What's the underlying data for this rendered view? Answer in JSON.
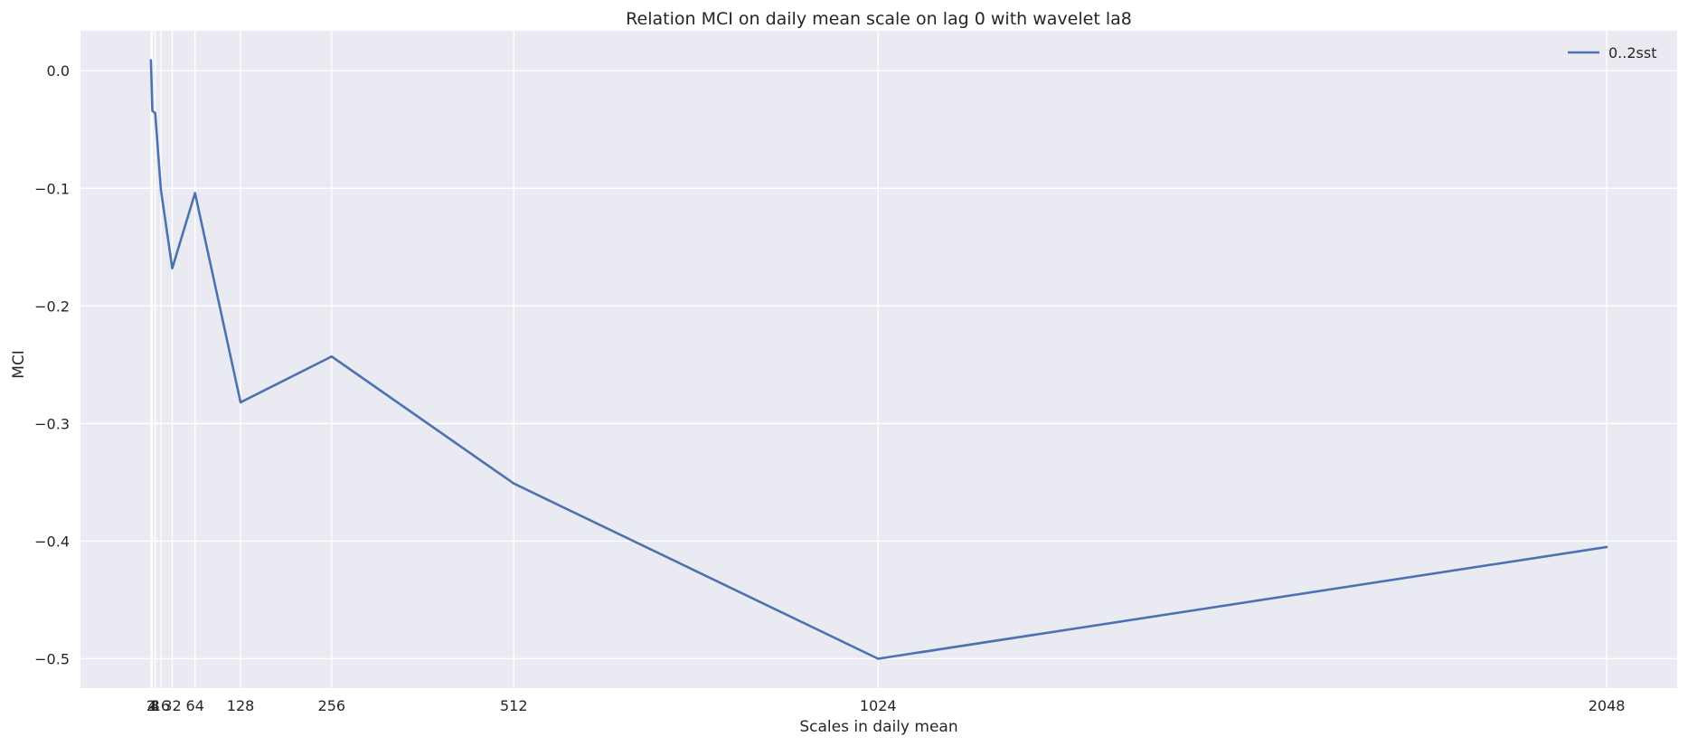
{
  "chart_data": {
    "type": "line",
    "title": "Relation MCI on daily mean scale on lag 0 with wavelet la8",
    "xlabel": "Scales in daily mean",
    "ylabel": "MCI",
    "x_ticks": [
      2,
      4,
      8,
      16,
      32,
      64,
      128,
      256,
      512,
      1024,
      2048
    ],
    "x_tick_labels": [
      "2",
      "4",
      "8",
      "16",
      "32",
      "64",
      "128",
      "256",
      "512",
      "1024",
      "2048"
    ],
    "xlim": [
      -97,
      2147
    ],
    "ylim": [
      -0.525,
      0.034
    ],
    "y_ticks": [
      0.0,
      -0.1,
      -0.2,
      -0.3,
      -0.4,
      -0.5
    ],
    "y_tick_labels": [
      "0.0",
      "−0.1",
      "−0.2",
      "−0.3",
      "−0.4",
      "−0.5"
    ],
    "grid": true,
    "legend_position": "top-right",
    "colors": {
      "background": "#eaeaf2",
      "grid": "#ffffff",
      "line": "#4c72b0"
    },
    "series": [
      {
        "name": "0..2sst",
        "x": [
          2,
          4,
          8,
          16,
          32,
          64,
          128,
          256,
          512,
          1024,
          2048
        ],
        "values": [
          0.009,
          -0.034,
          -0.036,
          -0.101,
          -0.168,
          -0.104,
          -0.282,
          -0.243,
          -0.351,
          -0.5,
          -0.405
        ]
      }
    ]
  }
}
